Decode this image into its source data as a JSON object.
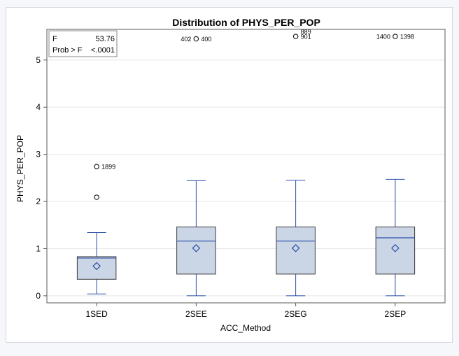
{
  "chart_data": {
    "type": "box",
    "title": "Distribution of PHYS_PER_POP",
    "xlabel": "ACC_Method",
    "ylabel": "PHYS_PER_POP",
    "ylim": [
      -0.15,
      5.65
    ],
    "yticks": [
      0,
      1,
      2,
      3,
      4,
      5
    ],
    "grid": true,
    "categories": [
      "1SED",
      "2SEE",
      "2SEG",
      "2SEP"
    ],
    "boxes": [
      {
        "category": "1SED",
        "whisker_low": 0.04,
        "q1": 0.35,
        "median": 0.8,
        "q3": 0.83,
        "whisker_high": 1.34,
        "mean": 0.63
      },
      {
        "category": "2SEE",
        "whisker_low": 0.0,
        "q1": 0.46,
        "median": 1.16,
        "q3": 1.46,
        "whisker_high": 2.44,
        "mean": 1.01
      },
      {
        "category": "2SEG",
        "whisker_low": 0.0,
        "q1": 0.46,
        "median": 1.16,
        "q3": 1.46,
        "whisker_high": 2.45,
        "mean": 1.01
      },
      {
        "category": "2SEP",
        "whisker_low": 0.0,
        "q1": 0.46,
        "median": 1.23,
        "q3": 1.46,
        "whisker_high": 2.47,
        "mean": 1.01
      }
    ],
    "outliers": [
      {
        "category": "1SED",
        "y": 2.74,
        "label": "1899",
        "label_side": "right"
      },
      {
        "category": "1SED",
        "y": 2.09,
        "label": "",
        "label_side": "right"
      },
      {
        "category": "2SEE",
        "y": 5.45,
        "label": "402",
        "label_side": "left"
      },
      {
        "category": "2SEE",
        "y": 5.45,
        "label": "400",
        "label_side": "right"
      },
      {
        "category": "2SEG",
        "y": 5.5,
        "label": "889",
        "label_side": "right-up"
      },
      {
        "category": "2SEG",
        "y": 5.5,
        "label": "901",
        "label_side": "right"
      },
      {
        "category": "2SEP",
        "y": 5.5,
        "label": "1400",
        "label_side": "left"
      },
      {
        "category": "2SEP",
        "y": 5.5,
        "label": "1398",
        "label_side": "right"
      }
    ],
    "stats_inset": {
      "rows": [
        {
          "label": "F",
          "value": "53.76"
        },
        {
          "label": "Prob > F",
          "value": "<.0001"
        }
      ]
    },
    "colors": {
      "box_fill": "#cad5e5",
      "box_stroke": "#3b3b3b",
      "whisker": "#2b4ea8",
      "median": "#2b4ea8",
      "mean_marker": "#2b4ea8",
      "grid": "#e6e6e6",
      "axis": "#5a5a5a"
    }
  }
}
